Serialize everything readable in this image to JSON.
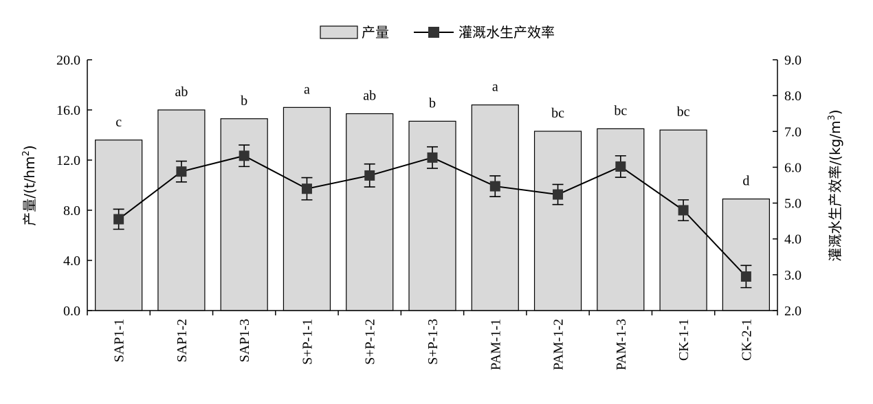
{
  "chart_data": {
    "type": "bar",
    "categories": [
      "SAP1-1",
      "SAP1-2",
      "SAP1-3",
      "S+P-1-1",
      "S+P-1-2",
      "S+P-1-3",
      "PAM-1-1",
      "PAM-1-2",
      "PAM-1-3",
      "CK-1-1",
      "CK-2-1"
    ],
    "series": [
      {
        "name": "产量",
        "kind": "bar",
        "axis": "left",
        "values": [
          13.6,
          16.0,
          15.3,
          16.2,
          15.7,
          15.1,
          16.4,
          14.3,
          14.5,
          14.4,
          8.9
        ],
        "letters": [
          "c",
          "ab",
          "b",
          "a",
          "ab",
          "b",
          "a",
          "bc",
          "bc",
          "bc",
          "d"
        ]
      },
      {
        "name": "灌溉水生产效率",
        "kind": "line",
        "axis": "right",
        "values": [
          4.55,
          5.88,
          6.32,
          5.4,
          5.77,
          6.27,
          5.47,
          5.24,
          6.02,
          4.8,
          2.95
        ],
        "errors": [
          0.28,
          0.29,
          0.3,
          0.31,
          0.32,
          0.3,
          0.29,
          0.28,
          0.3,
          0.29,
          0.31
        ]
      }
    ],
    "y_left": {
      "label": "产量/(t/hm2)",
      "label_main": "产量/(t/hm",
      "label_sup": "2",
      "label_end": ")",
      "ylim": [
        0,
        20
      ],
      "ticks": [
        "0.0",
        "4.0",
        "8.0",
        "12.0",
        "16.0",
        "20.0"
      ]
    },
    "y_right": {
      "label": "灌溉水生产效率/(kg/m3)",
      "label_main": "灌溉水生产效率/(kg/m",
      "label_sup": "3",
      "label_end": ")",
      "ylim": [
        2,
        9
      ],
      "ticks": [
        "2.0",
        "3.0",
        "4.0",
        "5.0",
        "6.0",
        "7.0",
        "8.0",
        "9.0"
      ]
    },
    "legend_position": "top-center",
    "grid": false,
    "colors": {
      "bar_fill": "#d9d9d9",
      "stroke": "#000000",
      "marker": "#333333"
    }
  }
}
